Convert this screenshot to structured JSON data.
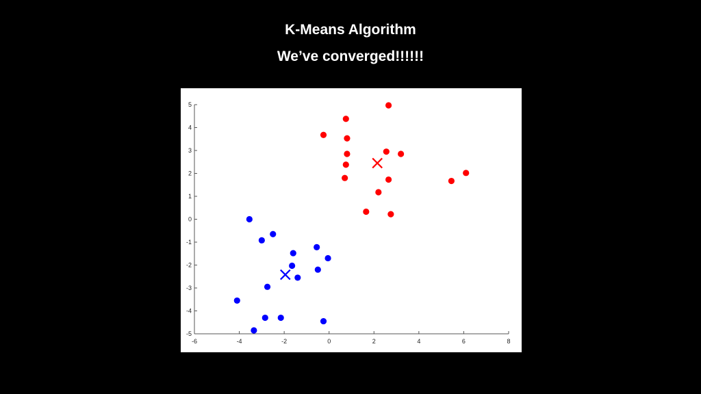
{
  "slide": {
    "title": "K-Means Algorithm",
    "subtitle": "We’ve converged!!!!!!"
  },
  "chart_data": {
    "type": "scatter",
    "title": "",
    "xlabel": "",
    "ylabel": "",
    "xlim": [
      -6,
      8
    ],
    "ylim": [
      -5,
      5
    ],
    "xticks": [
      -6,
      -4,
      -2,
      0,
      2,
      4,
      6,
      8
    ],
    "yticks": [
      -5,
      -4,
      -3,
      -2,
      -1,
      0,
      1,
      2,
      3,
      4,
      5
    ],
    "xtick_labels": [
      "-6",
      "-4",
      "-2",
      "0",
      "2",
      "4",
      "6",
      "8"
    ],
    "ytick_labels": [
      "-5",
      "-4",
      "-3",
      "-2",
      "-1",
      "0",
      "1",
      "2",
      "3",
      "4",
      "5"
    ],
    "grid": false,
    "series": [
      {
        "color": "#ff0000",
        "points": [
          [
            2.65,
            4.97
          ],
          [
            0.75,
            4.38
          ],
          [
            -0.25,
            3.68
          ],
          [
            0.8,
            3.53
          ],
          [
            0.8,
            2.85
          ],
          [
            2.55,
            2.95
          ],
          [
            3.2,
            2.85
          ],
          [
            0.75,
            2.38
          ],
          [
            0.7,
            1.8
          ],
          [
            2.65,
            1.73
          ],
          [
            6.1,
            2.02
          ],
          [
            5.45,
            1.67
          ],
          [
            2.2,
            1.18
          ],
          [
            1.65,
            0.33
          ],
          [
            2.75,
            0.22
          ]
        ],
        "centroid": [
          2.15,
          2.45
        ]
      },
      {
        "color": "#0000ff",
        "points": [
          [
            -3.55,
            0.0
          ],
          [
            -2.5,
            -0.65
          ],
          [
            -3.0,
            -0.92
          ],
          [
            -0.55,
            -1.22
          ],
          [
            -1.6,
            -1.48
          ],
          [
            -0.05,
            -1.7
          ],
          [
            -1.65,
            -2.03
          ],
          [
            -0.5,
            -2.2
          ],
          [
            -1.4,
            -2.55
          ],
          [
            -2.75,
            -2.95
          ],
          [
            -4.1,
            -3.55
          ],
          [
            -2.85,
            -4.3
          ],
          [
            -2.15,
            -4.3
          ],
          [
            -0.25,
            -4.45
          ],
          [
            -3.35,
            -4.85
          ]
        ],
        "centroid": [
          -1.95,
          -2.42
        ]
      }
    ]
  }
}
